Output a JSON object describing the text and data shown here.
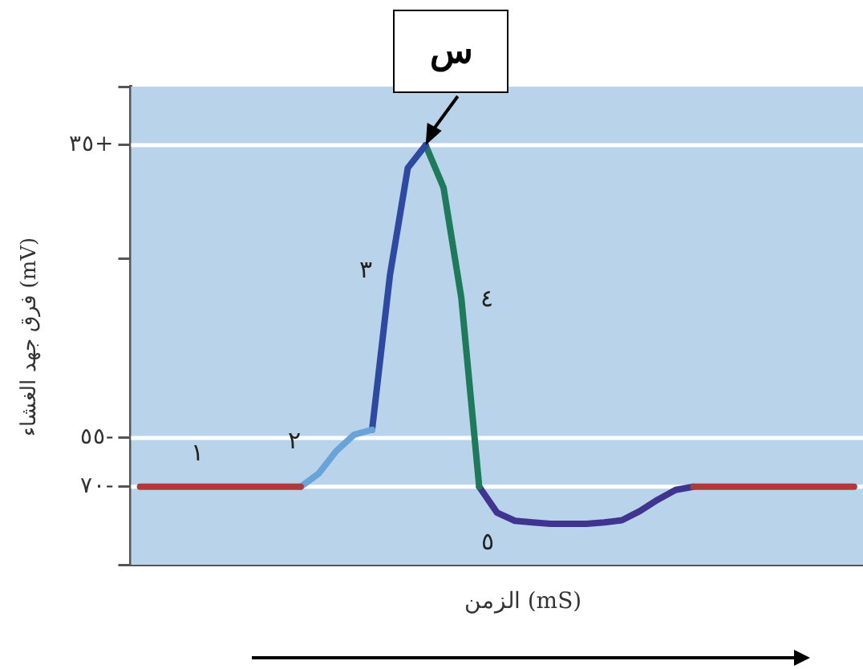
{
  "chart_data": {
    "type": "line",
    "xlabel": "الزمن (mS)",
    "ylabel": "فرق جهد الغشاء (mV)",
    "categories": [
      null,
      null,
      null,
      null,
      null,
      null,
      null,
      null,
      null,
      null,
      null,
      null,
      null,
      null,
      null,
      null,
      null,
      null,
      null,
      null,
      null,
      null,
      null,
      null,
      null,
      null,
      null,
      null,
      null,
      null,
      null,
      null,
      null,
      null,
      null,
      null,
      null,
      null,
      null,
      null,
      null
    ],
    "ylim": [
      -94,
      53
    ],
    "yticks": [
      {
        "value": 53,
        "label": null
      },
      {
        "value": 35,
        "label": "٣٥+"
      },
      {
        "value": 0,
        "label": null
      },
      {
        "value": -55,
        "label": "٥٥-"
      },
      {
        "value": -70,
        "label": "٧٠-"
      },
      {
        "value": -94,
        "label": null
      }
    ],
    "tick_labels": "y",
    "grid": false,
    "legend": false,
    "marker": "none",
    "line_style": "solid",
    "series": [
      {
        "name": "١",
        "color": "#b03a3a",
        "values": [
          -70,
          -70,
          -70,
          -70,
          -70,
          -70,
          -70,
          -70,
          -70,
          -70,
          null,
          null,
          null,
          null,
          null,
          null,
          null,
          null,
          null,
          null,
          null,
          null,
          null,
          null,
          null,
          null,
          null,
          null,
          null,
          null,
          null,
          -70,
          -70,
          -70,
          -70,
          -70,
          -70,
          -70,
          -70,
          -70,
          -70
        ]
      },
      {
        "name": "٢",
        "color": "#6aa3d8",
        "values": [
          null,
          null,
          null,
          null,
          null,
          null,
          null,
          null,
          null,
          -70,
          -66,
          -59,
          -54,
          -52.5,
          null,
          null,
          null,
          null,
          null,
          null,
          null,
          null,
          null,
          null,
          null,
          null,
          null,
          null,
          null,
          null,
          null,
          null,
          null,
          null,
          null,
          null,
          null,
          null,
          null,
          null,
          null
        ]
      },
      {
        "name": "٣",
        "color": "#2e4aa0",
        "values": [
          null,
          null,
          null,
          null,
          null,
          null,
          null,
          null,
          null,
          null,
          null,
          null,
          null,
          -52.5,
          -5,
          28,
          35,
          null,
          null,
          null,
          null,
          null,
          null,
          null,
          null,
          null,
          null,
          null,
          null,
          null,
          null,
          null,
          null,
          null,
          null,
          null,
          null,
          null,
          null,
          null,
          null
        ]
      },
      {
        "name": "٤",
        "color": "#1e7a5a",
        "values": [
          null,
          null,
          null,
          null,
          null,
          null,
          null,
          null,
          null,
          null,
          null,
          null,
          null,
          null,
          null,
          null,
          35,
          22,
          -12,
          -70,
          null,
          null,
          null,
          null,
          null,
          null,
          null,
          null,
          null,
          null,
          null,
          null,
          null,
          null,
          null,
          null,
          null,
          null,
          null,
          null,
          null
        ]
      },
      {
        "name": "٥",
        "color": "#3f3590",
        "values": [
          null,
          null,
          null,
          null,
          null,
          null,
          null,
          null,
          null,
          null,
          null,
          null,
          null,
          null,
          null,
          null,
          null,
          null,
          null,
          -70,
          -78,
          -80.5,
          -81,
          -81.4,
          -81.4,
          -81.4,
          -81,
          -80.3,
          -77.5,
          -74,
          -71,
          -70,
          null,
          null,
          null,
          null,
          null,
          null,
          null,
          null,
          null
        ]
      }
    ],
    "ref_lines": [
      {
        "axis": "y",
        "value": 35,
        "color": "#ffffff"
      },
      {
        "axis": "y",
        "value": -55,
        "color": "#ffffff"
      },
      {
        "axis": "y",
        "value": -70,
        "color": "#ffffff"
      }
    ],
    "annotations": [
      {
        "text": "س",
        "y": 35
      }
    ]
  }
}
